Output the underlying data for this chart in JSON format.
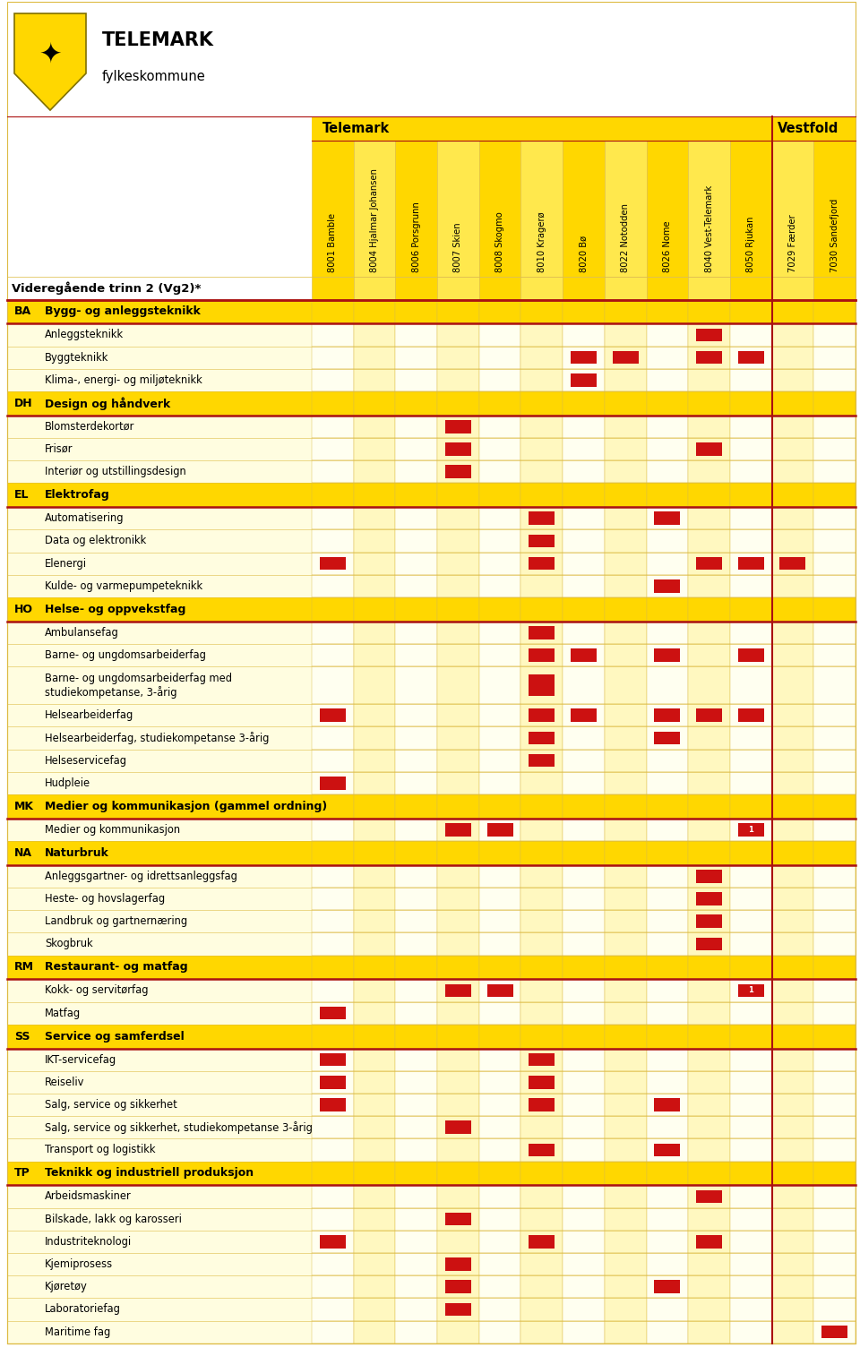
{
  "columns": [
    "8001 Bamble",
    "8004 Hjalmar Johansen",
    "8006 Porsgrunn",
    "8007 Skien",
    "8008 Skogmo",
    "8010 Kragerø",
    "8020 Bø",
    "8022 Notodden",
    "8026 Nome",
    "8040 Vest-Telemark",
    "8050 Rjukan",
    "7029 Færder",
    "7030 Sandefjord"
  ],
  "telemark_cols": 11,
  "vestfold_cols": 2,
  "header_text": "Videregående trinn 2 (Vg2)*",
  "GOLD": "#FFD700",
  "LIGHT_YELLOW": "#FFFDE0",
  "DARK_RED": "#AA1111",
  "MARKER_RED": "#CC1111",
  "COL_LINE": "#DDBB44",
  "WHITE": "#FFFFFF",
  "BLACK": "#000000",
  "rows": [
    {
      "type": "category",
      "code": "BA",
      "name": "Bygg- og anleggsteknikk",
      "marks": []
    },
    {
      "type": "subject",
      "name": "Anleggsteknikk",
      "marks": [
        9
      ]
    },
    {
      "type": "subject",
      "name": "Byggteknikk",
      "marks": [
        6,
        7,
        9,
        10
      ]
    },
    {
      "type": "subject",
      "name": "Klima-, energi- og miljøteknikk",
      "marks": [
        6
      ]
    },
    {
      "type": "category",
      "code": "DH",
      "name": "Design og håndverk",
      "marks": []
    },
    {
      "type": "subject",
      "name": "Blomsterdekortør",
      "marks": [
        3
      ]
    },
    {
      "type": "subject",
      "name": "Frisør",
      "marks": [
        3,
        9
      ]
    },
    {
      "type": "subject",
      "name": "Interiør og utstillingsdesign",
      "marks": [
        3
      ]
    },
    {
      "type": "category",
      "code": "EL",
      "name": "Elektrofag",
      "marks": []
    },
    {
      "type": "subject",
      "name": "Automatisering",
      "marks": [
        5,
        8
      ]
    },
    {
      "type": "subject",
      "name": "Data og elektronikk",
      "marks": [
        5
      ]
    },
    {
      "type": "subject",
      "name": "Elenergi",
      "marks": [
        0,
        5,
        9,
        10,
        11
      ]
    },
    {
      "type": "subject",
      "name": "Kulde- og varmepumpeteknikk",
      "marks": [
        8
      ]
    },
    {
      "type": "category",
      "code": "HO",
      "name": "Helse- og oppvekstfag",
      "marks": []
    },
    {
      "type": "subject",
      "name": "Ambulansefag",
      "marks": [
        5
      ]
    },
    {
      "type": "subject",
      "name": "Barne- og ungdomsarbeiderfag",
      "marks": [
        5,
        6,
        8,
        10
      ]
    },
    {
      "type": "subject2",
      "name": "Barne- og ungdomsarbeiderfag med\nstudiekompetanse, 3-årig",
      "marks": [
        5
      ]
    },
    {
      "type": "subject",
      "name": "Helsearbeiderfag",
      "marks": [
        0,
        5,
        6,
        8,
        9,
        10
      ]
    },
    {
      "type": "subject",
      "name": "Helsearbeiderfag, studiekompetanse 3-årig",
      "marks": [
        5,
        8
      ]
    },
    {
      "type": "subject",
      "name": "Helseservicefag",
      "marks": [
        5
      ]
    },
    {
      "type": "subject",
      "name": "Hudpleie",
      "marks": [
        0
      ]
    },
    {
      "type": "category",
      "code": "MK",
      "name": "Medier og kommunikasjon (gammel ordning)",
      "marks": []
    },
    {
      "type": "subject",
      "name": "Medier og kommunikasjon",
      "marks": [
        3,
        4
      ],
      "special_marks": [
        [
          10,
          "1"
        ]
      ]
    },
    {
      "type": "category",
      "code": "NA",
      "name": "Naturbruk",
      "marks": []
    },
    {
      "type": "subject",
      "name": "Anleggsgartner- og idrettsanleggsfag",
      "marks": [
        9
      ]
    },
    {
      "type": "subject",
      "name": "Heste- og hovslagerfag",
      "marks": [
        9
      ]
    },
    {
      "type": "subject",
      "name": "Landbruk og gartnernæring",
      "marks": [
        9
      ]
    },
    {
      "type": "subject",
      "name": "Skogbruk",
      "marks": [
        9
      ]
    },
    {
      "type": "category",
      "code": "RM",
      "name": "Restaurant- og matfag",
      "marks": []
    },
    {
      "type": "subject",
      "name": "Kokk- og servitørfag",
      "marks": [
        3,
        4
      ],
      "special_marks": [
        [
          10,
          "1"
        ]
      ]
    },
    {
      "type": "subject",
      "name": "Matfag",
      "marks": [
        0
      ]
    },
    {
      "type": "category",
      "code": "SS",
      "name": "Service og samferdsel",
      "marks": []
    },
    {
      "type": "subject",
      "name": "IKT-servicefag",
      "marks": [
        0,
        5
      ]
    },
    {
      "type": "subject",
      "name": "Reiseliv",
      "marks": [
        0,
        5
      ]
    },
    {
      "type": "subject",
      "name": "Salg, service og sikkerhet",
      "marks": [
        0,
        5,
        8
      ]
    },
    {
      "type": "subject",
      "name": "Salg, service og sikkerhet, studiekompetanse 3-årig",
      "marks": [
        3
      ]
    },
    {
      "type": "subject",
      "name": "Transport og logistikk",
      "marks": [
        5,
        8
      ]
    },
    {
      "type": "category",
      "code": "TP",
      "name": "Teknikk og industriell produksjon",
      "marks": []
    },
    {
      "type": "subject",
      "name": "Arbeidsmaskiner",
      "marks": [
        9
      ]
    },
    {
      "type": "subject",
      "name": "Bilskade, lakk og karosseri",
      "marks": [
        3
      ]
    },
    {
      "type": "subject",
      "name": "Industriteknologi",
      "marks": [
        0,
        5,
        9
      ]
    },
    {
      "type": "subject",
      "name": "Kjemiprosess",
      "marks": [
        3
      ]
    },
    {
      "type": "subject",
      "name": "Kjøretøy",
      "marks": [
        3,
        8
      ]
    },
    {
      "type": "subject",
      "name": "Laboratoriefag",
      "marks": [
        3
      ]
    },
    {
      "type": "subject",
      "name": "Maritime fag",
      "marks": [
        12
      ]
    }
  ]
}
